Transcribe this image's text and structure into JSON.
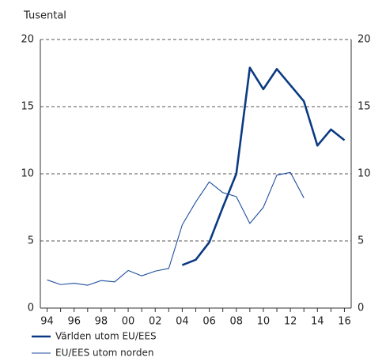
{
  "chart_data": {
    "type": "line",
    "y_axis_label": "Tusental",
    "categories": [
      "94",
      null,
      "96",
      null,
      "98",
      null,
      "00",
      null,
      "02",
      null,
      "04",
      null,
      "06",
      null,
      "08",
      null,
      "10",
      null,
      "12",
      null,
      "14",
      null,
      "16"
    ],
    "series": [
      {
        "name": "Världen utom EU/EES",
        "color": "#0b3a82",
        "width": 2.6,
        "values": [
          null,
          null,
          null,
          null,
          null,
          null,
          null,
          null,
          null,
          null,
          3.2,
          3.6,
          4.9,
          7.5,
          10.0,
          17.9,
          16.3,
          17.8,
          16.6,
          15.4,
          12.1,
          13.3,
          12.5
        ]
      },
      {
        "name": "EU/EES utom norden",
        "color": "#1f4e9e",
        "width": 1.1,
        "values": [
          2.1,
          1.75,
          1.85,
          1.7,
          2.05,
          1.95,
          2.8,
          2.4,
          2.75,
          2.95,
          6.2,
          7.9,
          9.4,
          8.6,
          8.3,
          6.3,
          7.5,
          9.9,
          10.1,
          8.2,
          null,
          null,
          null
        ]
      }
    ],
    "ylim": [
      0,
      20
    ],
    "yticks": [
      0,
      5,
      10,
      15,
      20
    ],
    "grid": true
  }
}
